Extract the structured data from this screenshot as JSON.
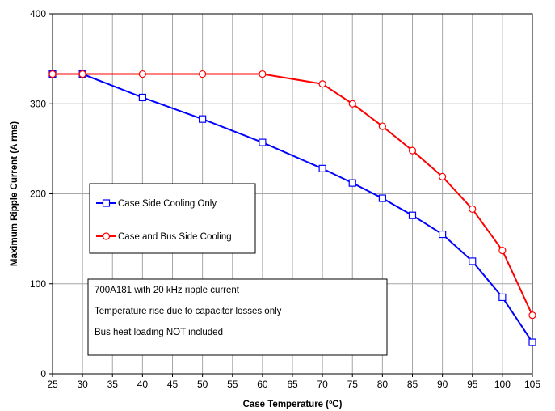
{
  "chart_data": {
    "type": "line",
    "title": "",
    "xlabel": "Case Temperature (ºC)",
    "ylabel": "Maximum Ripple Current (A rms)",
    "xlim": [
      25,
      105
    ],
    "ylim": [
      0,
      400
    ],
    "x_ticks": [
      25,
      30,
      35,
      40,
      45,
      50,
      55,
      60,
      65,
      70,
      75,
      80,
      85,
      90,
      95,
      100,
      105
    ],
    "y_ticks": [
      0,
      100,
      200,
      300,
      400
    ],
    "grid": true,
    "legend_position": "middle-left",
    "series": [
      {
        "name": "Case Side Cooling Only",
        "color": "#0000ff",
        "marker": "square",
        "x": [
          25,
          30,
          40,
          50,
          60,
          70,
          75,
          80,
          85,
          90,
          95,
          100,
          105
        ],
        "y": [
          333,
          333,
          307,
          283,
          257,
          228,
          212,
          195,
          176,
          155,
          125,
          85,
          35
        ]
      },
      {
        "name": "Case and Bus Side Cooling",
        "color": "#ff0000",
        "marker": "circle",
        "x": [
          25,
          30,
          40,
          50,
          60,
          70,
          75,
          80,
          85,
          90,
          95,
          100,
          105
        ],
        "y": [
          333,
          333,
          333,
          333,
          333,
          322,
          300,
          275,
          248,
          219,
          183,
          137,
          65
        ]
      }
    ],
    "annotations": [
      "700A181 with 20 kHz ripple current",
      "Temperature rise due to capacitor losses only",
      "Bus heat loading NOT included"
    ]
  }
}
